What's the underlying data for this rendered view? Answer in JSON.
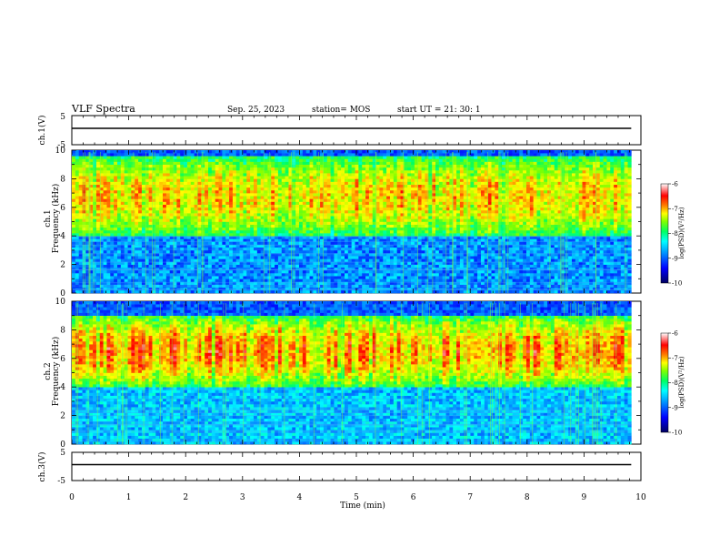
{
  "header": {
    "title": "VLF Spectra",
    "date": "Sep. 25, 2023",
    "station": "station= MOS",
    "start": "start  UT =   21: 30: 1"
  },
  "chart_data": [
    {
      "type": "line",
      "name": "ch1-waveform",
      "ylabel": "ch.1(V)",
      "ylim": [
        -5,
        5
      ],
      "yticks": [
        "5",
        "-5"
      ],
      "x": [
        0,
        9.83
      ],
      "y": [
        0,
        0
      ]
    },
    {
      "type": "heatmap",
      "name": "ch1-spectrogram",
      "ylabel": "ch.1\nFrequency (kHz)",
      "ylim": [
        0,
        10
      ],
      "yticks": [
        "0",
        "2",
        "4",
        "6",
        "8",
        "10"
      ],
      "xlim": [
        0,
        10
      ],
      "data_end_min": 9.83,
      "colorbar": {
        "label": "log(PSD)(V²/Hz)",
        "ticks": [
          "-6",
          "-7",
          "-8",
          "-9",
          "-10"
        ],
        "range": [
          -10,
          -6
        ]
      },
      "dominant_band_khz": [
        4,
        9.5
      ],
      "peak_log_psd": -6.8
    },
    {
      "type": "heatmap",
      "name": "ch2-spectrogram",
      "ylabel": "ch.2\nFrequency (kHz)",
      "ylim": [
        0,
        10
      ],
      "yticks": [
        "0",
        "2",
        "4",
        "6",
        "8",
        "10"
      ],
      "xlim": [
        0,
        10
      ],
      "data_end_min": 9.83,
      "colorbar": {
        "label": "log(PSD)(V²/Hz)",
        "ticks": [
          "-6",
          "-7",
          "-8",
          "-9",
          "-10"
        ],
        "range": [
          -10,
          -6
        ]
      },
      "dominant_band_khz": [
        4,
        9
      ],
      "peak_log_psd": -6.5
    },
    {
      "type": "line",
      "name": "ch3-waveform",
      "ylabel": "ch.3(V)",
      "ylim": [
        -5,
        5
      ],
      "yticks": [
        "5",
        "-5"
      ],
      "x": [
        0,
        9.83
      ],
      "y": [
        0,
        0
      ]
    }
  ],
  "xaxis": {
    "label": "Time (min)",
    "ticks": [
      "0",
      "1",
      "2",
      "3",
      "4",
      "5",
      "6",
      "7",
      "8",
      "9",
      "10"
    ],
    "range": [
      0,
      10
    ]
  },
  "colors": {
    "colormap": [
      "#000080",
      "#0000ff",
      "#0090ff",
      "#00ffff",
      "#00ff60",
      "#80ff00",
      "#ffff00",
      "#ff8000",
      "#ff0000",
      "#ffffff"
    ]
  }
}
